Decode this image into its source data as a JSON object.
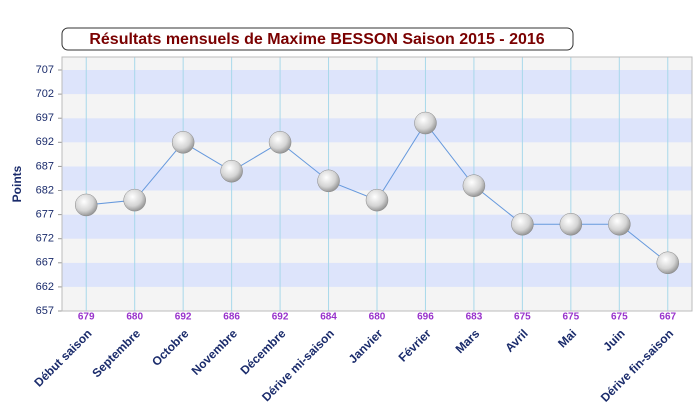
{
  "chart_data": {
    "type": "line",
    "title": "Résultats mensuels de Maxime BESSON Saison 2015 - 2016",
    "y_label": "Points",
    "categories": [
      "Début saison",
      "Septembre",
      "Octobre",
      "Novembre",
      "Décembre",
      "Dérive mi-saison",
      "Janvier",
      "Février",
      "Mars",
      "Avril",
      "Mai",
      "Juin",
      "Dérive fin-saison"
    ],
    "series": [
      {
        "color": "#6699dd",
        "values": [
          679,
          680,
          692,
          686,
          692,
          684,
          680,
          696,
          683,
          675,
          675,
          675,
          667
        ]
      }
    ],
    "ylim": [
      657,
      709.7
    ],
    "yticks": [
      657,
      662,
      667,
      672,
      677,
      682,
      687,
      692,
      697,
      702,
      707
    ],
    "grid": true,
    "band_colors": [
      "#f4f4f4",
      "#dde4fb"
    ],
    "value_label_color": "#9933cc"
  }
}
